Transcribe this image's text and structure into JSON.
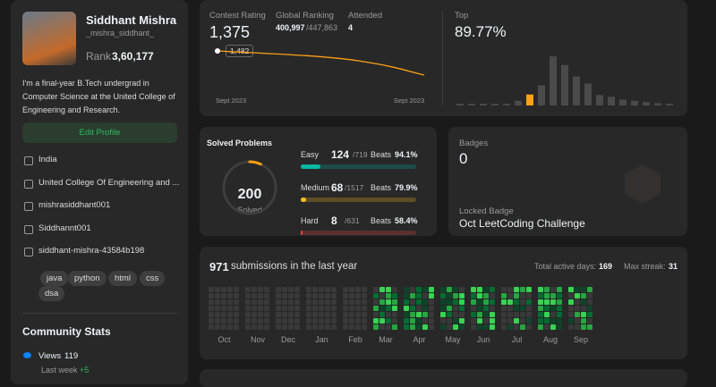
{
  "profile": {
    "name": "Siddhant Mishra",
    "username": "_mishra_siddhant_",
    "rank_label": "Rank",
    "rank": "3,60,177",
    "bio": "I'm a final-year B.Tech undergrad in Computer Science at the United College of Engineering and Research.",
    "edit_button": "Edit Profile",
    "details": [
      "India",
      "United College Of Engineering and ...",
      "mishrasiddhant001",
      "Siddhannt001",
      "siddhant-mishra-43584b198"
    ],
    "skills": [
      "java",
      "python",
      "html",
      "css",
      "dsa"
    ]
  },
  "community": {
    "title": "Community Stats",
    "views_label": "Views",
    "views": 119,
    "last_week_label": "Last week",
    "last_week": "+5"
  },
  "contest": {
    "rating_label": "Contest Rating",
    "rating": "1,375",
    "global_label": "Global Ranking",
    "global_rank": "400,997",
    "global_total": "/447,863",
    "attended_label": "Attended",
    "attended": 4,
    "tooltip": "1,482",
    "x_start": "Sept 2023",
    "x_end": "Sept 2023",
    "top_label": "Top",
    "top": "89.77%",
    "histogram": [
      3,
      3,
      3,
      3,
      3,
      8,
      19,
      35,
      85,
      70,
      50,
      38,
      18,
      15,
      10,
      8,
      6,
      4,
      3
    ],
    "histogram_highlight": 6
  },
  "solved": {
    "title": "Solved Problems",
    "count": 200,
    "count_label": "Solved",
    "levels": [
      {
        "name": "Easy",
        "solved": 124,
        "total": "/719",
        "beats_label": "Beats",
        "beats": "94.1%",
        "color": "#00b8a3"
      },
      {
        "name": "Medium",
        "solved": 68,
        "total": "/1517",
        "beats_label": "Beats",
        "beats": "79.9%",
        "color": "#ffc01e"
      },
      {
        "name": "Hard",
        "solved": 8,
        "total": "/631",
        "beats_label": "Beats",
        "beats": "58.4%",
        "color": "#ef4743"
      }
    ]
  },
  "badges": {
    "title": "Badges",
    "count": 0,
    "locked_label": "Locked Badge",
    "locked_name": "Oct LeetCoding Challenge"
  },
  "submissions": {
    "count": 971,
    "label": "submissions in the last year",
    "active_days_label": "Total active days:",
    "active_days": 169,
    "max_streak_label": "Max streak:",
    "max_streak": 31,
    "months": [
      "Oct",
      "Nov",
      "Dec",
      "Jan",
      "Feb",
      "Mar",
      "Apr",
      "May",
      "Jun",
      "Jul",
      "Aug",
      "Sep"
    ]
  }
}
